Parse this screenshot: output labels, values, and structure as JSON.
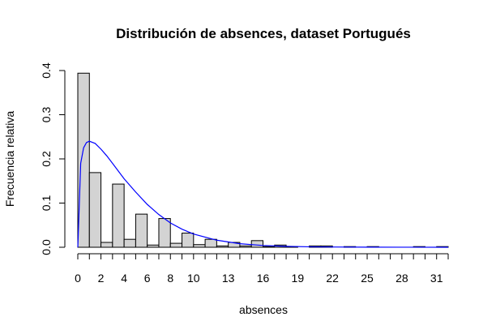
{
  "chart_data": {
    "type": "bar",
    "title": "Distribución de absences, dataset Portugués",
    "xlabel": "absences",
    "ylabel": "Frecuencia relativa",
    "bin_width": 1,
    "bins": [
      {
        "start": 0,
        "value": 0.394
      },
      {
        "start": 1,
        "value": 0.169
      },
      {
        "start": 2,
        "value": 0.011
      },
      {
        "start": 3,
        "value": 0.143
      },
      {
        "start": 4,
        "value": 0.018
      },
      {
        "start": 5,
        "value": 0.075
      },
      {
        "start": 6,
        "value": 0.005
      },
      {
        "start": 7,
        "value": 0.065
      },
      {
        "start": 8,
        "value": 0.009
      },
      {
        "start": 9,
        "value": 0.032
      },
      {
        "start": 10,
        "value": 0.006
      },
      {
        "start": 11,
        "value": 0.018
      },
      {
        "start": 12,
        "value": 0.003
      },
      {
        "start": 13,
        "value": 0.011
      },
      {
        "start": 14,
        "value": 0.003
      },
      {
        "start": 15,
        "value": 0.015
      },
      {
        "start": 16,
        "value": 0.0015
      },
      {
        "start": 17,
        "value": 0.005
      },
      {
        "start": 18,
        "value": 0.0015
      },
      {
        "start": 20,
        "value": 0.003
      },
      {
        "start": 21,
        "value": 0.003
      },
      {
        "start": 23,
        "value": 0.0015
      },
      {
        "start": 25,
        "value": 0.0015
      },
      {
        "start": 29,
        "value": 0.0015
      },
      {
        "start": 31,
        "value": 0.0015
      }
    ],
    "density_curve": {
      "color": "#0000ff",
      "x": [
        0,
        0.25,
        0.5,
        0.75,
        1,
        1.5,
        2,
        2.5,
        3,
        4,
        5,
        6,
        7,
        8,
        9,
        10,
        12,
        14,
        16,
        18,
        20,
        22,
        25,
        28,
        32
      ],
      "y": [
        0,
        0.19,
        0.225,
        0.237,
        0.24,
        0.235,
        0.222,
        0.207,
        0.19,
        0.155,
        0.125,
        0.097,
        0.074,
        0.055,
        0.041,
        0.03,
        0.016,
        0.008,
        0.004,
        0.002,
        0.001,
        0.0006,
        0.0002,
        0.0001,
        0
      ]
    },
    "xlim": [
      0,
      32
    ],
    "ylim": [
      0,
      0.4
    ],
    "x_ticks": [
      0,
      2,
      4,
      6,
      8,
      10,
      13,
      16,
      19,
      22,
      25,
      28,
      31
    ],
    "x_minor_ticks": [
      0,
      1,
      2,
      3,
      4,
      5,
      6,
      7,
      8,
      9,
      10,
      11,
      12,
      13,
      14,
      15,
      16,
      17,
      18,
      19,
      20,
      21,
      22,
      23,
      24,
      25,
      26,
      27,
      28,
      29,
      30,
      31,
      32
    ],
    "y_ticks": [
      0.0,
      0.1,
      0.2,
      0.3,
      0.4
    ],
    "y_tick_labels": [
      "0.0",
      "0.1",
      "0.2",
      "0.3",
      "0.4"
    ],
    "x_tick_labels": [
      "0",
      "2",
      "4",
      "6",
      "8",
      "10",
      "13",
      "16",
      "19",
      "22",
      "25",
      "28",
      "31"
    ],
    "bar_fill": "#d3d3d3",
    "grid": false,
    "legend": "none"
  }
}
